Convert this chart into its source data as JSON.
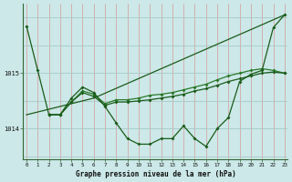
{
  "title": "Graphe pression niveau de la mer (hPa)",
  "bg_color": "#cce8e8",
  "line_color_dark": "#1a5c1a",
  "line_color_mid": "#2a7a2a",
  "xlim": [
    -0.3,
    23.3
  ],
  "ylim": [
    1013.45,
    1016.25
  ],
  "yticks": [
    1014,
    1015
  ],
  "xticks": [
    0,
    1,
    2,
    3,
    4,
    5,
    6,
    7,
    8,
    9,
    10,
    11,
    12,
    13,
    14,
    15,
    16,
    17,
    18,
    19,
    20,
    21,
    22,
    23
  ],
  "line1_x": [
    0,
    1,
    2,
    3,
    4,
    5,
    6,
    7,
    8,
    9,
    10,
    11,
    12,
    13,
    14,
    15,
    16,
    17,
    18,
    19,
    20,
    21,
    22,
    23
  ],
  "line1_y": [
    1015.85,
    1015.05,
    1014.25,
    1014.25,
    1014.55,
    1014.75,
    1014.65,
    1014.4,
    1014.1,
    1013.82,
    1013.72,
    1013.72,
    1013.82,
    1013.82,
    1014.05,
    1013.82,
    1013.68,
    1014.0,
    1014.2,
    1014.85,
    1014.98,
    1015.05,
    1015.82,
    1016.05
  ],
  "line2_x": [
    0,
    6,
    23
  ],
  "line2_y": [
    1014.25,
    1014.55,
    1016.05
  ],
  "line3_x": [
    2,
    3,
    4,
    5,
    6,
    7,
    8,
    9,
    10,
    11,
    12,
    13,
    14,
    15,
    16,
    17,
    18,
    19,
    20,
    21,
    22,
    23
  ],
  "line3_y": [
    1014.25,
    1014.25,
    1014.48,
    1014.65,
    1014.58,
    1014.42,
    1014.48,
    1014.48,
    1014.5,
    1014.52,
    1014.55,
    1014.58,
    1014.62,
    1014.68,
    1014.72,
    1014.78,
    1014.85,
    1014.9,
    1014.95,
    1015.0,
    1015.02,
    1015.0
  ],
  "line4_x": [
    2,
    3,
    4,
    5,
    6,
    7,
    8,
    9,
    10,
    11,
    12,
    13,
    14,
    15,
    16,
    17,
    18,
    19,
    20,
    21,
    22,
    23
  ],
  "line4_y": [
    1014.25,
    1014.25,
    1014.48,
    1014.68,
    1014.62,
    1014.45,
    1014.52,
    1014.52,
    1014.55,
    1014.6,
    1014.62,
    1014.65,
    1014.7,
    1014.75,
    1014.8,
    1014.88,
    1014.95,
    1015.0,
    1015.05,
    1015.08,
    1015.05,
    1015.0
  ]
}
